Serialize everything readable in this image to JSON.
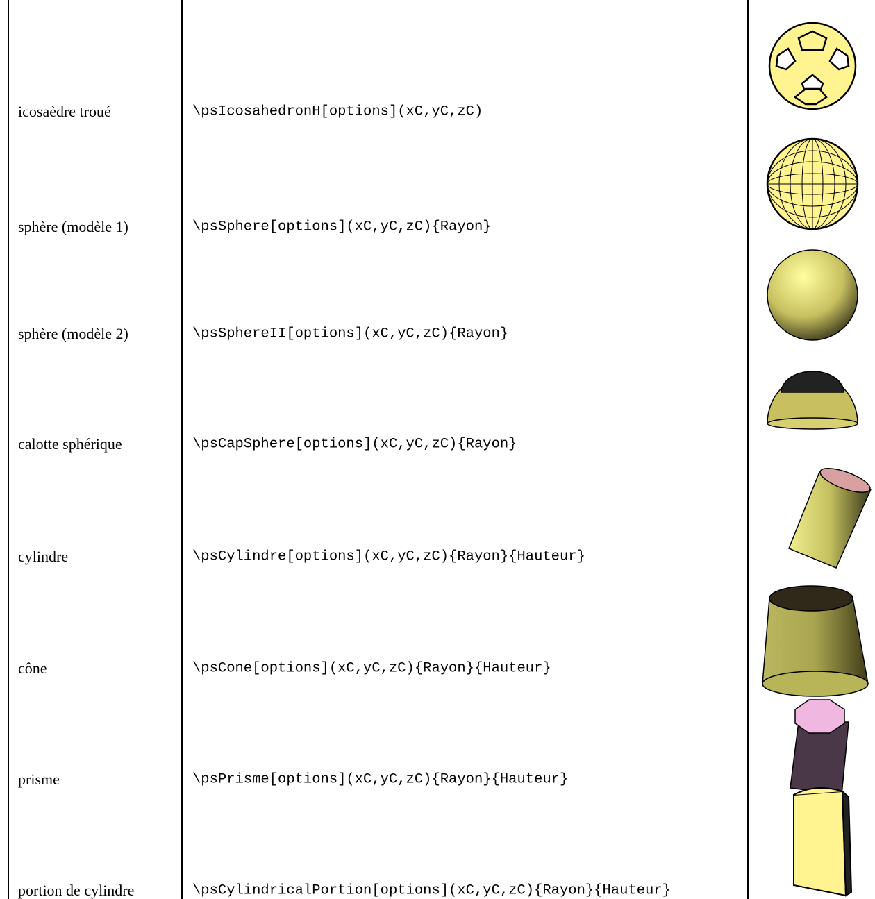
{
  "table": {
    "rows": [
      [
        "icosaèdre troué",
        "\\psIcosahedronH[options](xC,yC,zC)"
      ],
      [
        "sphère (modèle 1)",
        "\\psSphere[options](xC,yC,zC){Rayon}"
      ],
      [
        "sphère (modèle 2)",
        "\\psSphereII[options](xC,yC,zC){Rayon}"
      ],
      [
        "calotte sphérique",
        "\\psCapSphere[options](xC,yC,zC){Rayon}"
      ],
      [
        "cylindre",
        "\\psCylindre[options](xC,yC,zC){Rayon}{Hauteur}"
      ],
      [
        "cône",
        "\\psCone[options](xC,yC,zC){Rayon}{Hauteur}"
      ],
      [
        "prisme",
        "\\psPrisme[options](xC,yC,zC){Rayon}{Hauteur}"
      ],
      [
        "portion de cylindre",
        "\\psCylindricalPortion[options](xC,yC,zC){Rayon}{Hauteur}"
      ]
    ]
  }
}
